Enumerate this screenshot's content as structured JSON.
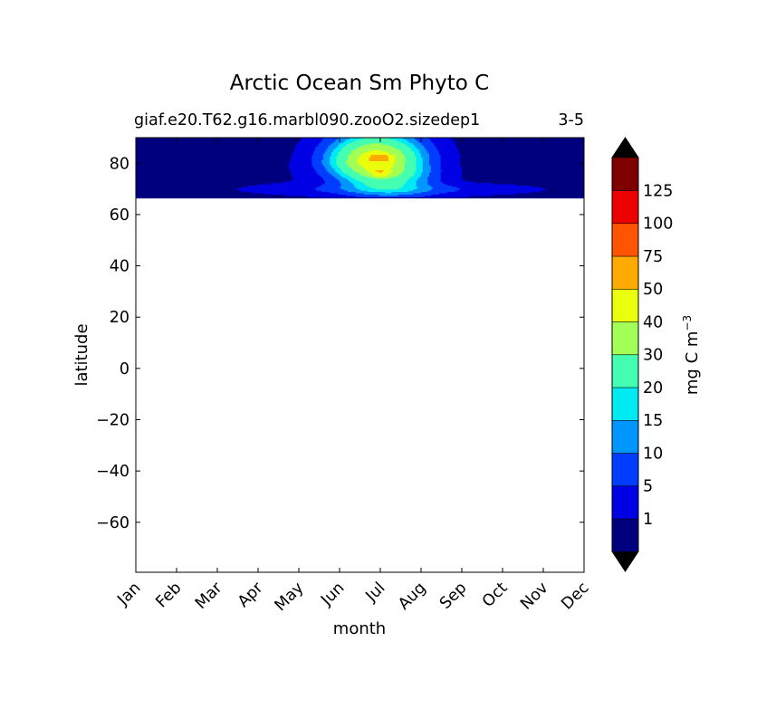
{
  "chart_data": {
    "type": "contour",
    "title": "Arctic Ocean Sm Phyto C",
    "subtitle_left": "giaf.e20.T62.g16.marbl090.zooO2.sizedep1",
    "subtitle_right": "3-5",
    "xlabel": "month",
    "ylabel": "latitude",
    "x_ticks": [
      "Jan",
      "Feb",
      "Mar",
      "Apr",
      "May",
      "Jun",
      "Jul",
      "Aug",
      "Sep",
      "Oct",
      "Nov",
      "Dec"
    ],
    "y_ticks": [
      80,
      60,
      40,
      20,
      0,
      -20,
      -40,
      -60
    ],
    "y_tick_labels": [
      "80",
      "60",
      "40",
      "20",
      "0",
      "−20",
      "−40",
      "−60"
    ],
    "ylim": [
      -79.5,
      90
    ],
    "data_lat_range": [
      66.5,
      90
    ],
    "colorbar": {
      "label_main": "mg C m",
      "label_exp": "−3",
      "levels": [
        0,
        1,
        5,
        10,
        15,
        20,
        30,
        40,
        50,
        75,
        100,
        125
      ],
      "tick_labels": [
        "1",
        "5",
        "10",
        "15",
        "20",
        "30",
        "40",
        "50",
        "75",
        "100",
        "125"
      ],
      "colors": [
        "#00007f",
        "#0000e4",
        "#003dff",
        "#0096ff",
        "#00eaf3",
        "#44ffb2",
        "#a1ff56",
        "#eaff0d",
        "#ffaa00",
        "#ff5500",
        "#ed0000",
        "#7f0000"
      ],
      "extend": "both",
      "under_color": "#000000",
      "over_color": "#000000"
    },
    "field": {
      "description_months": [
        "Jan",
        "Feb",
        "Mar",
        "Apr",
        "May",
        "Jun",
        "Jul",
        "Aug",
        "Sep",
        "Oct",
        "Nov",
        "Dec"
      ],
      "max_band": "50-75 near 82N / 76N in early July",
      "peak_months": [
        "Jun",
        "Jul",
        "Aug"
      ]
    }
  }
}
